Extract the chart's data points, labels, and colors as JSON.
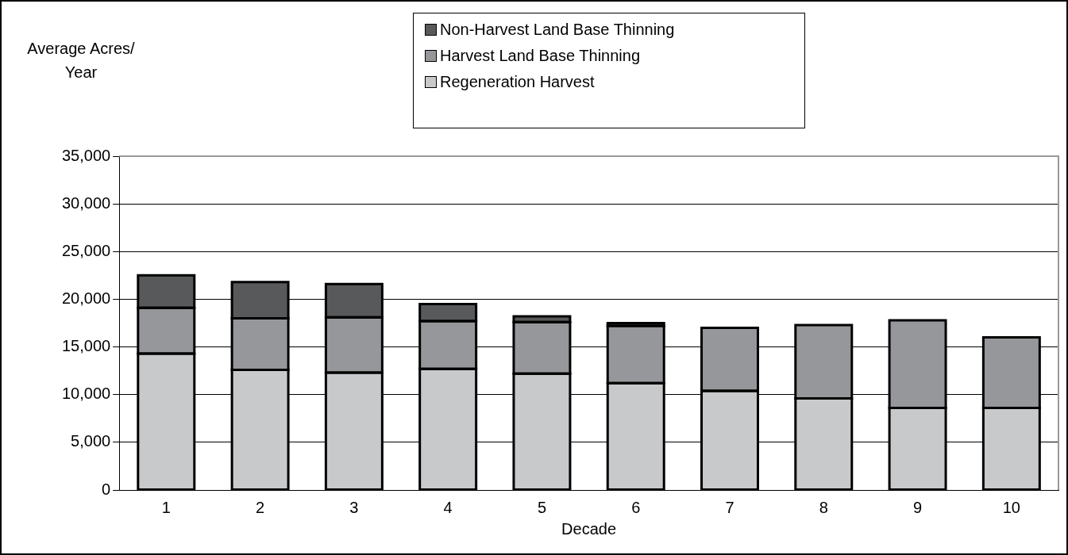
{
  "chart_data": {
    "type": "bar",
    "stacked": true,
    "xlabel": "Decade",
    "ylabel": "Average Acres/ Year",
    "categories": [
      "1",
      "2",
      "3",
      "4",
      "5",
      "6",
      "7",
      "8",
      "9",
      "10"
    ],
    "series": [
      {
        "name": "Regeneration Harvest",
        "color": "#c8c9cb",
        "values": [
          14300,
          12600,
          12300,
          12700,
          12200,
          11200,
          10400,
          9600,
          8600,
          8600
        ]
      },
      {
        "name": "Harvest Land Base Thinning",
        "color": "#96979b",
        "values": [
          4800,
          5400,
          5800,
          5000,
          5400,
          6000,
          6600,
          7700,
          9200,
          7400
        ]
      },
      {
        "name": "Non-Harvest Land Base Thinning",
        "color": "#58595b",
        "values": [
          3400,
          3800,
          3500,
          1800,
          600,
          300,
          null,
          null,
          null,
          null
        ]
      }
    ],
    "ylim": [
      0,
      35000
    ],
    "yticks": [
      0,
      {
        "value": 5000,
        "label": "5,000"
      },
      {
        "value": 10000,
        "label": "10,000"
      },
      {
        "value": 15000,
        "label": "15,000"
      },
      {
        "value": 20000,
        "label": "20,000"
      },
      {
        "value": 25000,
        "label": "25,000"
      },
      {
        "value": 30000,
        "label": "30,000"
      },
      {
        "value": 35000,
        "label": "35,000"
      }
    ],
    "grid": "y",
    "legend": "top"
  }
}
